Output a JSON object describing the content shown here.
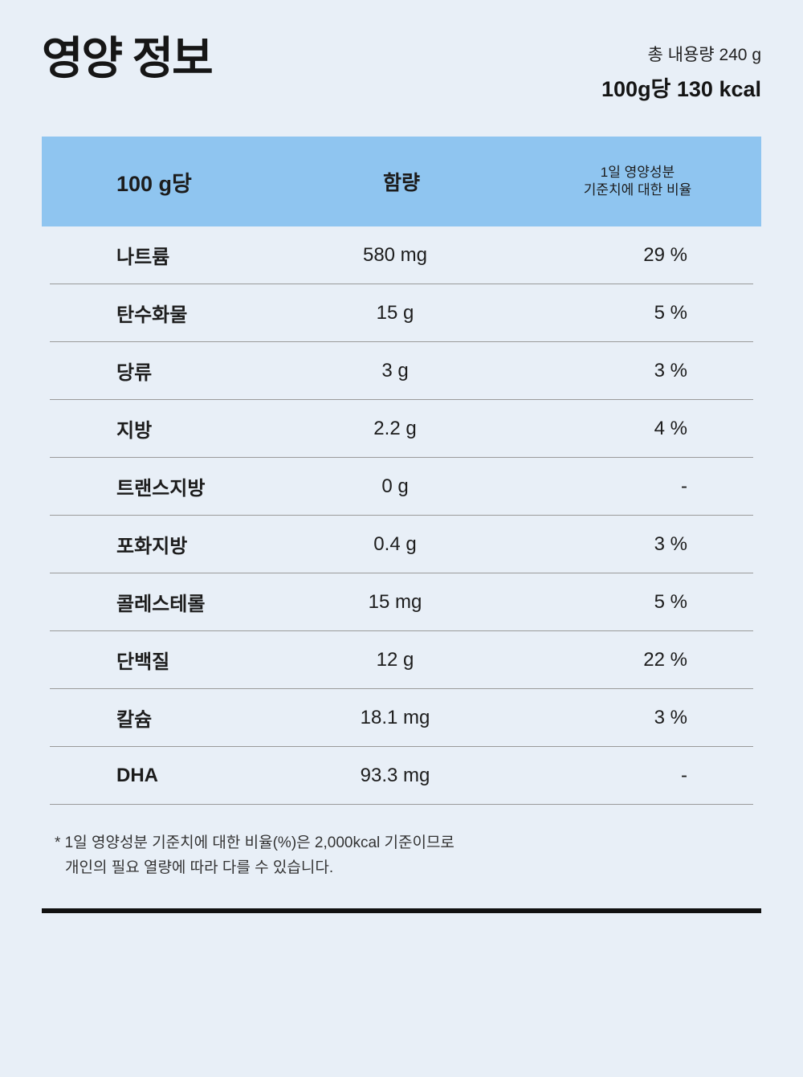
{
  "page": {
    "title": "영양 정보",
    "total_amount": "총 내용량 240 g",
    "calories": "100g당 130 kcal",
    "colors": {
      "page_bg": "#e8eff7",
      "header_bg": "#8fc5f0",
      "divider": "#9a9a9a",
      "bar": "#111111"
    }
  },
  "table": {
    "header": {
      "col_serving": "100 g당",
      "col_amount": "함량",
      "col_daily_line1": "1일 영양성분",
      "col_daily_line2": "기준치에 대한 비율"
    },
    "rows": [
      {
        "label": "나트륨",
        "amount": "580 mg",
        "daily": "29 %"
      },
      {
        "label": "탄수화물",
        "amount": "15 g",
        "daily": "5 %"
      },
      {
        "label": "당류",
        "amount": "3 g",
        "daily": "3 %"
      },
      {
        "label": "지방",
        "amount": "2.2 g",
        "daily": "4 %"
      },
      {
        "label": "트랜스지방",
        "amount": "0 g",
        "daily": "-"
      },
      {
        "label": "포화지방",
        "amount": "0.4 g",
        "daily": "3 %"
      },
      {
        "label": "콜레스테롤",
        "amount": "15 mg",
        "daily": "5 %"
      },
      {
        "label": "단백질",
        "amount": "12 g",
        "daily": "22 %"
      },
      {
        "label": "칼슘",
        "amount": "18.1 mg",
        "daily": "3 %"
      },
      {
        "label": "DHA",
        "amount": "93.3 mg",
        "daily": "-"
      }
    ],
    "footnote_line1": "* 1일 영양성분 기준치에 대한 비율(%)은 2,000kcal 기준이므로",
    "footnote_line2": "개인의 필요 열량에 따라 다를 수 있습니다."
  }
}
